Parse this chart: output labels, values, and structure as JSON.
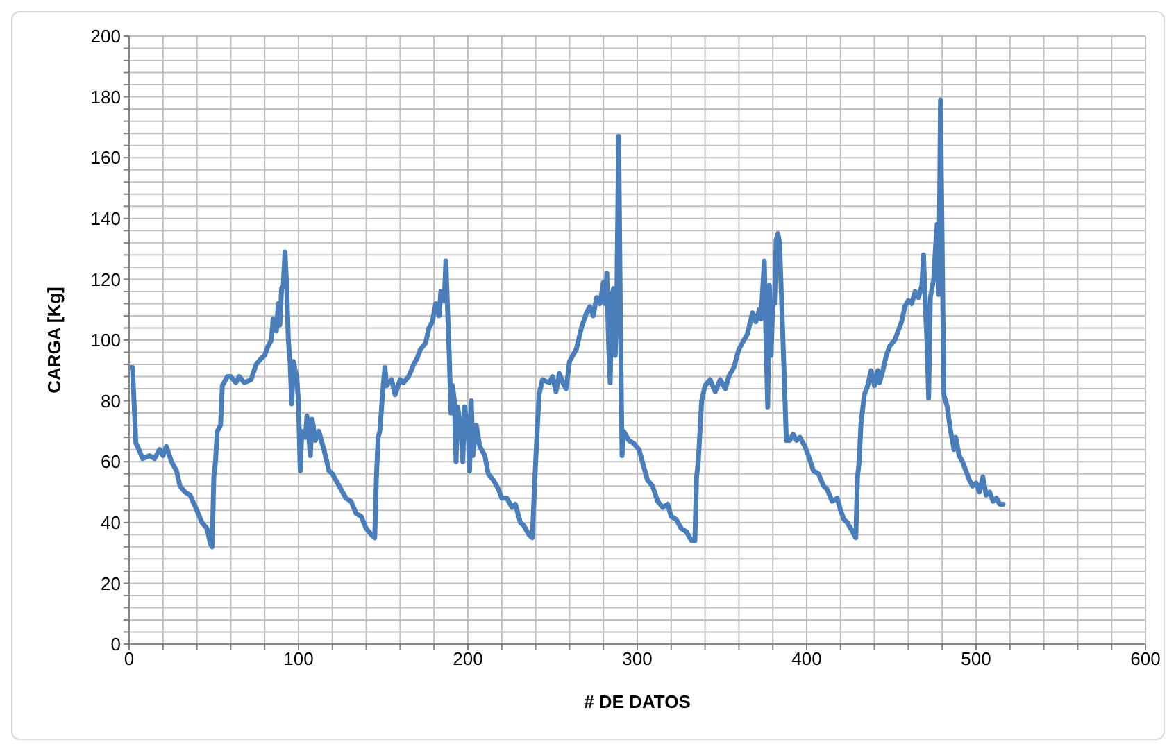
{
  "chart_data": {
    "type": "line",
    "xlabel": "# DE DATOS",
    "ylabel": "CARGA [Kg]",
    "xlim": [
      0,
      600
    ],
    "xticks": [
      0,
      {
        "value": 20,
        "label": null
      },
      {
        "value": 40,
        "label": null
      },
      {
        "value": 60,
        "label": null
      },
      {
        "value": 80,
        "label": null
      },
      100,
      {
        "value": 120,
        "label": null
      },
      {
        "value": 140,
        "label": null
      },
      {
        "value": 160,
        "label": null
      },
      {
        "value": 180,
        "label": null
      },
      200,
      {
        "value": 220,
        "label": null
      },
      {
        "value": 240,
        "label": null
      },
      {
        "value": 260,
        "label": null
      },
      {
        "value": 280,
        "label": null
      },
      300,
      {
        "value": 320,
        "label": null
      },
      {
        "value": 340,
        "label": null
      },
      {
        "value": 360,
        "label": null
      },
      {
        "value": 380,
        "label": null
      },
      400,
      {
        "value": 420,
        "label": null
      },
      {
        "value": 440,
        "label": null
      },
      {
        "value": 460,
        "label": null
      },
      {
        "value": 480,
        "label": null
      },
      500,
      {
        "value": 520,
        "label": null
      },
      {
        "value": 540,
        "label": null
      },
      {
        "value": 560,
        "label": null
      },
      {
        "value": 580,
        "label": null
      },
      600
    ],
    "ylim": [
      0,
      200
    ],
    "yticks": [
      0,
      {
        "value": 4,
        "label": null
      },
      {
        "value": 8,
        "label": null
      },
      {
        "value": 12,
        "label": null
      },
      {
        "value": 16,
        "label": null
      },
      20,
      {
        "value": 24,
        "label": null
      },
      {
        "value": 28,
        "label": null
      },
      {
        "value": 32,
        "label": null
      },
      {
        "value": 36,
        "label": null
      },
      40,
      {
        "value": 44,
        "label": null
      },
      {
        "value": 48,
        "label": null
      },
      {
        "value": 52,
        "label": null
      },
      {
        "value": 56,
        "label": null
      },
      60,
      {
        "value": 64,
        "label": null
      },
      {
        "value": 68,
        "label": null
      },
      {
        "value": 72,
        "label": null
      },
      {
        "value": 76,
        "label": null
      },
      80,
      {
        "value": 84,
        "label": null
      },
      {
        "value": 88,
        "label": null
      },
      {
        "value": 92,
        "label": null
      },
      {
        "value": 96,
        "label": null
      },
      100,
      {
        "value": 104,
        "label": null
      },
      {
        "value": 108,
        "label": null
      },
      {
        "value": 112,
        "label": null
      },
      {
        "value": 116,
        "label": null
      },
      120,
      {
        "value": 124,
        "label": null
      },
      {
        "value": 128,
        "label": null
      },
      {
        "value": 132,
        "label": null
      },
      {
        "value": 136,
        "label": null
      },
      140,
      {
        "value": 144,
        "label": null
      },
      {
        "value": 148,
        "label": null
      },
      {
        "value": 152,
        "label": null
      },
      {
        "value": 156,
        "label": null
      },
      160,
      {
        "value": 164,
        "label": null
      },
      {
        "value": 168,
        "label": null
      },
      {
        "value": 172,
        "label": null
      },
      {
        "value": 176,
        "label": null
      },
      180,
      {
        "value": 184,
        "label": null
      },
      {
        "value": 188,
        "label": null
      },
      {
        "value": 192,
        "label": null
      },
      {
        "value": 196,
        "label": null
      },
      200
    ],
    "grid": true,
    "legend": false,
    "marker": "none",
    "line_style": "solid",
    "series": [
      {
        "color": "#4a7ebb",
        "x": [
          0,
          2,
          4,
          5,
          8,
          12,
          15,
          18,
          20,
          22,
          25,
          28,
          30,
          33,
          36,
          40,
          43,
          46,
          48,
          49,
          50,
          51,
          52,
          54,
          55,
          58,
          60,
          63,
          65,
          68,
          72,
          75,
          78,
          80,
          82,
          84,
          85,
          87,
          88,
          89,
          90,
          91,
          92,
          93,
          94,
          95,
          96,
          97,
          98,
          99,
          100,
          101,
          102,
          104,
          105,
          107,
          108,
          110,
          112,
          115,
          118,
          120,
          124,
          128,
          131,
          134,
          137,
          140,
          143,
          145,
          146,
          147,
          148,
          150,
          151,
          152,
          155,
          157,
          160,
          162,
          165,
          168,
          170,
          172,
          175,
          177,
          179,
          181,
          183,
          184,
          186,
          187,
          188,
          189,
          190,
          191,
          192,
          193,
          194,
          196,
          197,
          198,
          200,
          201,
          202,
          203,
          205,
          207,
          210,
          212,
          215,
          218,
          220,
          223,
          226,
          228,
          231,
          233,
          236,
          238,
          240,
          242,
          244,
          248,
          250,
          252,
          254,
          256,
          258,
          260,
          264,
          267,
          270,
          272,
          274,
          276,
          278,
          280,
          281,
          282,
          283,
          284,
          285,
          286,
          287,
          288,
          289,
          290,
          291,
          292,
          295,
          298,
          301,
          304,
          306,
          309,
          312,
          315,
          318,
          320,
          323,
          326,
          329,
          332,
          334,
          335,
          336,
          337,
          338,
          340,
          343,
          346,
          349,
          352,
          354,
          357,
          360,
          362,
          365,
          368,
          370,
          372,
          373,
          375,
          376,
          377,
          378,
          379,
          380,
          381,
          382,
          383,
          384,
          386,
          388,
          390,
          392,
          394,
          396,
          399,
          401,
          404,
          407,
          410,
          412,
          415,
          418,
          420,
          422,
          424,
          426,
          428,
          429,
          430,
          431,
          432,
          434,
          436,
          438,
          440,
          442,
          443,
          445,
          447,
          449,
          452,
          454,
          456,
          458,
          460,
          462,
          464,
          466,
          468,
          469,
          470,
          471,
          472,
          473,
          475,
          476,
          477,
          478,
          479,
          480,
          481,
          483,
          485,
          487,
          488,
          490,
          492,
          494,
          496,
          498,
          500,
          502,
          504,
          506,
          508,
          510,
          512,
          514,
          516
        ],
        "values": [
          91,
          91,
          66,
          65,
          61,
          62,
          61,
          64,
          62,
          65,
          60,
          57,
          52,
          50,
          49,
          44,
          40,
          38,
          33,
          32,
          55,
          60,
          70,
          72,
          85,
          88,
          88,
          86,
          88,
          86,
          87,
          92,
          94,
          95,
          98,
          100,
          107,
          103,
          112,
          105,
          117,
          118,
          129,
          118,
          100,
          93,
          79,
          93,
          90,
          88,
          79,
          57,
          70,
          68,
          75,
          62,
          74,
          67,
          70,
          64,
          57,
          56,
          52,
          48,
          47,
          43,
          42,
          38,
          36,
          35,
          55,
          68,
          70,
          85,
          91,
          85,
          87,
          82,
          87,
          86,
          88,
          92,
          94,
          97,
          99,
          104,
          106,
          112,
          108,
          116,
          113,
          126,
          110,
          95,
          76,
          85,
          80,
          60,
          78,
          70,
          60,
          78,
          72,
          57,
          80,
          62,
          72,
          65,
          62,
          56,
          54,
          51,
          48,
          48,
          45,
          46,
          40,
          39,
          36,
          35,
          60,
          82,
          87,
          86,
          88,
          83,
          89,
          86,
          84,
          93,
          97,
          104,
          109,
          111,
          108,
          114,
          112,
          119,
          112,
          122,
          100,
          86,
          115,
          117,
          95,
          118,
          167,
          110,
          62,
          70,
          67,
          66,
          64,
          58,
          54,
          52,
          47,
          45,
          46,
          42,
          41,
          38,
          37,
          34,
          34,
          55,
          60,
          70,
          80,
          85,
          87,
          83,
          87,
          84,
          88,
          91,
          97,
          99,
          102,
          109,
          106,
          110,
          107,
          126,
          100,
          78,
          118,
          95,
          112,
          112,
          133,
          135,
          132,
          100,
          67,
          67,
          69,
          67,
          68,
          65,
          62,
          57,
          56,
          52,
          51,
          47,
          48,
          44,
          41,
          40,
          38,
          36,
          35,
          55,
          60,
          72,
          82,
          85,
          90,
          85,
          90,
          86,
          90,
          95,
          98,
          100,
          103,
          106,
          111,
          113,
          112,
          116,
          114,
          118,
          128,
          112,
          100,
          81,
          114,
          120,
          130,
          138,
          115,
          179,
          130,
          82,
          78,
          70,
          64,
          68,
          62,
          60,
          57,
          54,
          52,
          53,
          50,
          55,
          49,
          50,
          47,
          48,
          46,
          46
        ]
      }
    ]
  }
}
